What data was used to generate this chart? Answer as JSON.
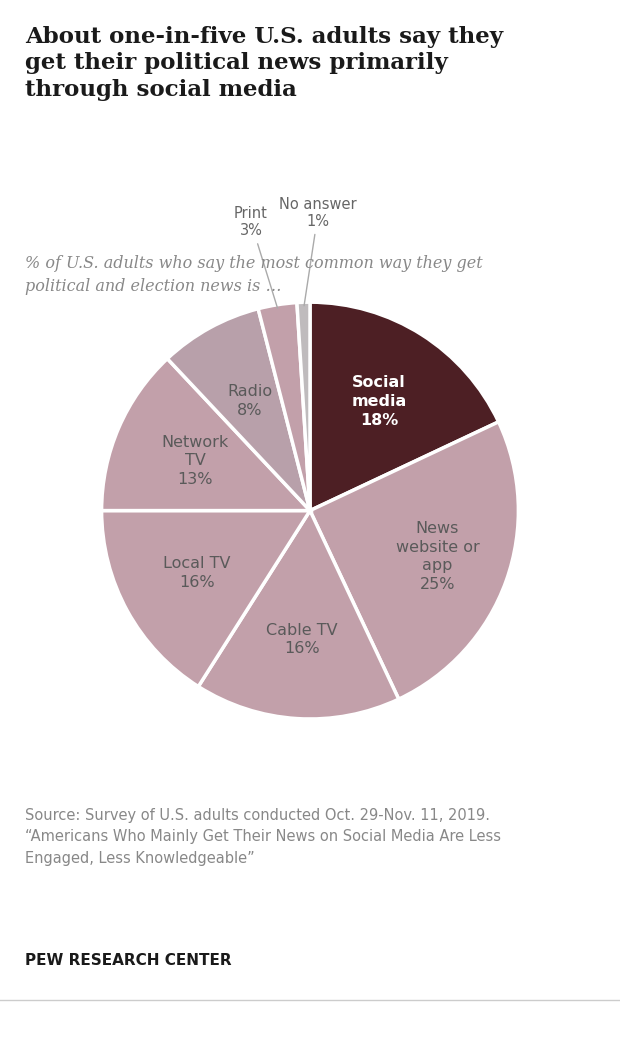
{
  "title": "About one-in-five U.S. adults say they\nget their political news primarily\nthrough social media",
  "subtitle": "% of U.S. adults who say the most common way they get\npolitical and election news is …",
  "source": "Source: Survey of U.S. adults conducted Oct. 29-Nov. 11, 2019.\n“Americans Who Mainly Get Their News on Social Media Are Less\nEngaged, Less Knowledgeable”",
  "footer": "PEW RESEARCH CENTER",
  "labels": [
    "Social\nmedia",
    "News\nwebsite or\napp",
    "Cable TV",
    "Local TV",
    "Network\nTV",
    "Radio",
    "Print",
    "No answer"
  ],
  "pcts": [
    "18%",
    "25%",
    "16%",
    "16%",
    "13%",
    "8%",
    "3%",
    "1%"
  ],
  "values": [
    18,
    25,
    16,
    16,
    13,
    8,
    3,
    1
  ],
  "colors": [
    "#4d1f24",
    "#c2a0aa",
    "#c2a0aa",
    "#c2a0aa",
    "#c2a0aa",
    "#b8a0aa",
    "#c2a0aa",
    "#bfbbbd"
  ],
  "label_colors": [
    "#ffffff",
    "#5a5a5a",
    "#5a5a5a",
    "#5a5a5a",
    "#5a5a5a",
    "#5a5a5a",
    "#5a5a5a",
    "#5a5a5a"
  ],
  "background_color": "#ffffff",
  "startangle": 90,
  "title_fontsize": 16.5,
  "subtitle_fontsize": 11.5,
  "label_fontsize": 11.5,
  "source_fontsize": 10.5,
  "footer_fontsize": 11
}
